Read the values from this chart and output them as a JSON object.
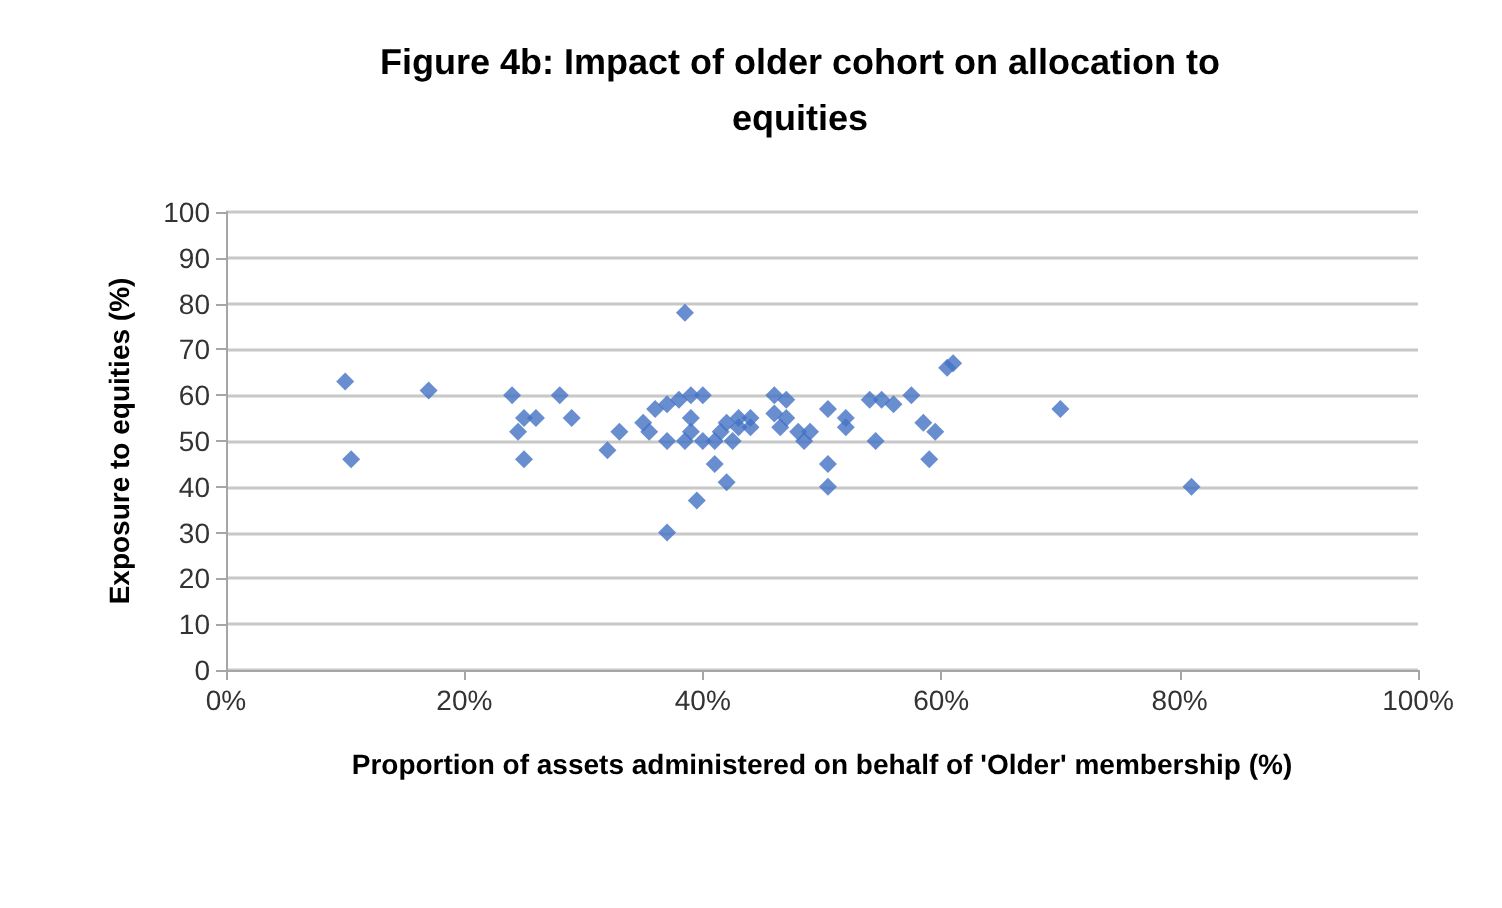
{
  "chart_data": {
    "type": "scatter",
    "title": "Figure 4b: Impact of older cohort on allocation to equities",
    "xlabel": "Proportion of assets administered on behalf of 'Older' membership (%)",
    "ylabel": "Exposure to equities (%)",
    "x": [
      10,
      10.5,
      17,
      24,
      24.5,
      25,
      25,
      26,
      28,
      29,
      32,
      33,
      35,
      35.5,
      36,
      37,
      37,
      37,
      38,
      38.5,
      38.5,
      39,
      39,
      39,
      39.5,
      40,
      40,
      41,
      41,
      41.5,
      42,
      42,
      42.5,
      43,
      43,
      44,
      44,
      46,
      46,
      46.5,
      47,
      47,
      48,
      48.5,
      49,
      50.5,
      50.5,
      50.5,
      52,
      52,
      54,
      55,
      54.5,
      56,
      57.5,
      58.5,
      59,
      59.5,
      60.5,
      61,
      70,
      81
    ],
    "series": [
      {
        "color": "#4472c4",
        "values": [
          63,
          46,
          61,
          60,
          52,
          55,
          46,
          55,
          60,
          55,
          48,
          52,
          54,
          52,
          57,
          30,
          58,
          50,
          59,
          78,
          50,
          60,
          55,
          52,
          37,
          60,
          50,
          45,
          50,
          52,
          54,
          41,
          50,
          55,
          53,
          55,
          53,
          60,
          56,
          53,
          55,
          59,
          52,
          50,
          52,
          57,
          45,
          40,
          55,
          53,
          59,
          59,
          50,
          58,
          60,
          54,
          46,
          52,
          66,
          67,
          57,
          40
        ]
      }
    ],
    "marker": "diamond",
    "grid": "y",
    "xlim": [
      0,
      100
    ],
    "xticks": [
      {
        "value": 0,
        "label": "0%"
      },
      {
        "value": 20,
        "label": "20%"
      },
      {
        "value": 40,
        "label": "40%"
      },
      {
        "value": 60,
        "label": "60%"
      },
      {
        "value": 80,
        "label": "80%"
      },
      {
        "value": 100,
        "label": "100%"
      }
    ],
    "ylim": [
      0,
      100
    ],
    "yticks": [
      0,
      10,
      20,
      30,
      40,
      50,
      60,
      70,
      80,
      90,
      100
    ]
  }
}
